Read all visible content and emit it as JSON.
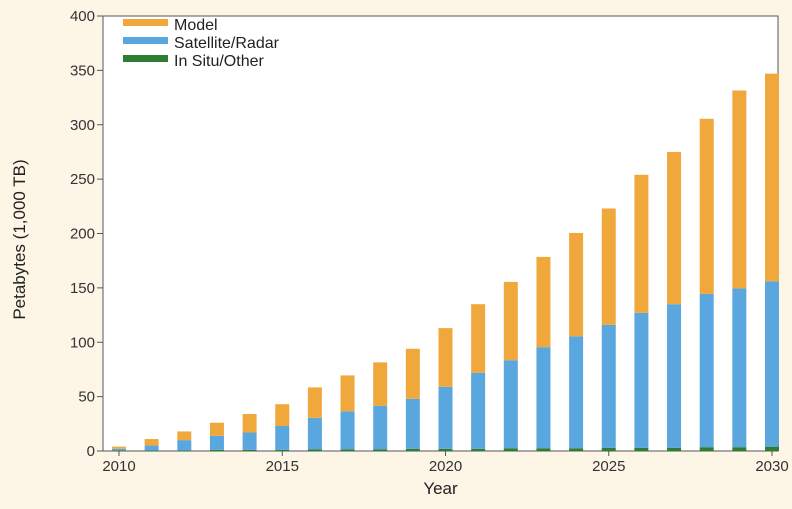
{
  "chart_data": {
    "type": "bar",
    "stacked": true,
    "xlabel": "Year",
    "ylabel": "Petabytes (1,000 TB)",
    "ylim": [
      0,
      400
    ],
    "yticks": [
      0,
      50,
      100,
      150,
      200,
      250,
      300,
      350,
      400
    ],
    "xticks": [
      2010,
      2015,
      2020,
      2025,
      2030
    ],
    "xlim": [
      2010,
      2030
    ],
    "grid": false,
    "legend_position": "top-left",
    "categories": [
      2010,
      2011,
      2012,
      2013,
      2014,
      2015,
      2016,
      2017,
      2018,
      2019,
      2020,
      2021,
      2022,
      2023,
      2024,
      2025,
      2026,
      2027,
      2028,
      2029,
      2030
    ],
    "series": [
      {
        "name": "In Situ/Other",
        "color": "#2e7d32",
        "values": [
          0.5,
          0.5,
          0.5,
          1,
          1,
          1,
          1.5,
          1.5,
          1.5,
          2,
          2,
          2,
          2.5,
          2.5,
          2.5,
          3,
          3,
          3,
          3.5,
          3.5,
          4
        ]
      },
      {
        "name": "Satellite/Radar",
        "color": "#5aa7e0",
        "values": [
          1.5,
          4.5,
          9.5,
          13,
          16,
          22,
          29,
          35,
          40,
          46,
          57,
          70,
          81,
          93,
          103,
          113,
          124,
          132,
          141,
          146,
          152
        ]
      },
      {
        "name": "Model",
        "color": "#f0a83c",
        "values": [
          2,
          6,
          8,
          12,
          17,
          20,
          28,
          33,
          40,
          46,
          54,
          63,
          72,
          83,
          95,
          107,
          127,
          140,
          161,
          182,
          191
        ]
      }
    ],
    "legend": [
      {
        "label": "Model",
        "color": "#f0a83c"
      },
      {
        "label": "Satellite/Radar",
        "color": "#5aa7e0"
      },
      {
        "label": "In Situ/Other",
        "color": "#2e7d32"
      }
    ]
  }
}
